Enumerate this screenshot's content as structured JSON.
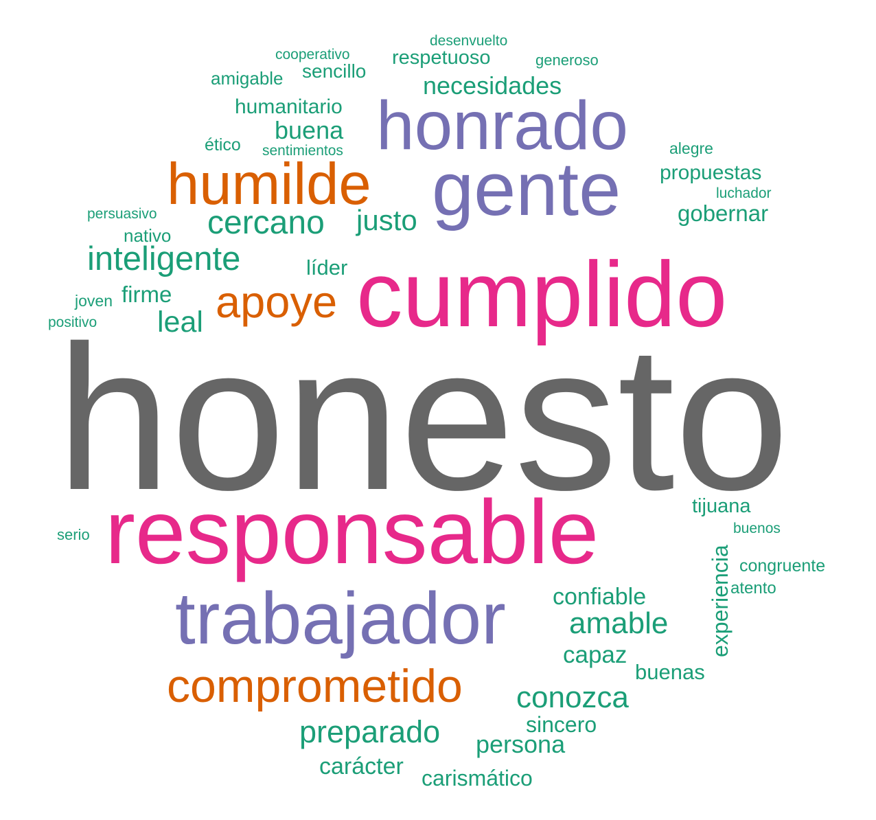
{
  "colors": {
    "gray": "#666666",
    "magenta": "#e7298a",
    "purple": "#7570b3",
    "orange": "#d95f02",
    "green": "#1b9e77"
  },
  "words": [
    {
      "id": "honesto",
      "text": "honesto",
      "color": "gray"
    },
    {
      "id": "cumplido",
      "text": "cumplido",
      "color": "magenta"
    },
    {
      "id": "responsable",
      "text": "responsable",
      "color": "magenta"
    },
    {
      "id": "honrado",
      "text": "honrado",
      "color": "purple"
    },
    {
      "id": "gente",
      "text": "gente",
      "color": "purple"
    },
    {
      "id": "trabajador",
      "text": "trabajador",
      "color": "purple"
    },
    {
      "id": "humilde",
      "text": "humilde",
      "color": "orange"
    },
    {
      "id": "apoye",
      "text": "apoye",
      "color": "orange"
    },
    {
      "id": "comprometido",
      "text": "comprometido",
      "color": "orange"
    },
    {
      "id": "desenvuelto",
      "text": "desenvuelto",
      "color": "green"
    },
    {
      "id": "cooperativo",
      "text": "cooperativo",
      "color": "green"
    },
    {
      "id": "respetuoso",
      "text": "respetuoso",
      "color": "green"
    },
    {
      "id": "generoso",
      "text": "generoso",
      "color": "green"
    },
    {
      "id": "amigable",
      "text": "amigable",
      "color": "green"
    },
    {
      "id": "sencillo",
      "text": "sencillo",
      "color": "green"
    },
    {
      "id": "necesidades",
      "text": "necesidades",
      "color": "green"
    },
    {
      "id": "humanitario",
      "text": "humanitario",
      "color": "green"
    },
    {
      "id": "buena",
      "text": "buena",
      "color": "green"
    },
    {
      "id": "etico",
      "text": "ético",
      "color": "green"
    },
    {
      "id": "sentimientos",
      "text": "sentimientos",
      "color": "green"
    },
    {
      "id": "alegre",
      "text": "alegre",
      "color": "green"
    },
    {
      "id": "propuestas",
      "text": "propuestas",
      "color": "green"
    },
    {
      "id": "luchador",
      "text": "luchador",
      "color": "green"
    },
    {
      "id": "gobernar",
      "text": "gobernar",
      "color": "green"
    },
    {
      "id": "persuasivo",
      "text": "persuasivo",
      "color": "green"
    },
    {
      "id": "cercano",
      "text": "cercano",
      "color": "green"
    },
    {
      "id": "justo",
      "text": "justo",
      "color": "green"
    },
    {
      "id": "nativo",
      "text": "nativo",
      "color": "green"
    },
    {
      "id": "inteligente",
      "text": "inteligente",
      "color": "green"
    },
    {
      "id": "lider",
      "text": "líder",
      "color": "green"
    },
    {
      "id": "joven",
      "text": "joven",
      "color": "green"
    },
    {
      "id": "firme",
      "text": "firme",
      "color": "green"
    },
    {
      "id": "leal",
      "text": "leal",
      "color": "green"
    },
    {
      "id": "positivo",
      "text": "positivo",
      "color": "green"
    },
    {
      "id": "tijuana",
      "text": "tijuana",
      "color": "green"
    },
    {
      "id": "buenos",
      "text": "buenos",
      "color": "green"
    },
    {
      "id": "serio",
      "text": "serio",
      "color": "green"
    },
    {
      "id": "experiencia",
      "text": "experiencia",
      "color": "green"
    },
    {
      "id": "congruente",
      "text": "congruente",
      "color": "green"
    },
    {
      "id": "atento",
      "text": "atento",
      "color": "green"
    },
    {
      "id": "confiable",
      "text": "confiable",
      "color": "green"
    },
    {
      "id": "amable",
      "text": "amable",
      "color": "green"
    },
    {
      "id": "capaz",
      "text": "capaz",
      "color": "green"
    },
    {
      "id": "buenas",
      "text": "buenas",
      "color": "green"
    },
    {
      "id": "conozca",
      "text": "conozca",
      "color": "green"
    },
    {
      "id": "preparado",
      "text": "preparado",
      "color": "green"
    },
    {
      "id": "sincero",
      "text": "sincero",
      "color": "green"
    },
    {
      "id": "persona",
      "text": "persona",
      "color": "green"
    },
    {
      "id": "caracter",
      "text": "carácter",
      "color": "green"
    },
    {
      "id": "carismatico",
      "text": "carismático",
      "color": "green"
    }
  ]
}
